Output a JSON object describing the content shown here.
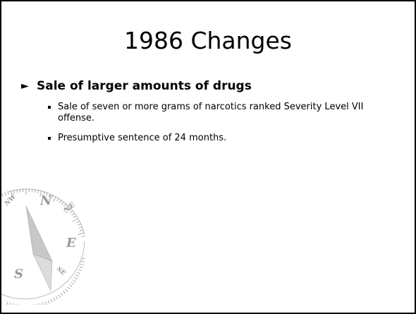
{
  "slide": {
    "title": "1986 Changes",
    "bullets": [
      {
        "text": "Sale of larger amounts of drugs",
        "subbullets": [
          "Sale of seven or more grams of narcotics ranked Severity Level VII offense.",
          "Presumptive sentence of 24 months."
        ]
      }
    ]
  },
  "compass": {
    "labels": [
      "N",
      "NE",
      "E",
      "S",
      "SE",
      "NW"
    ]
  }
}
